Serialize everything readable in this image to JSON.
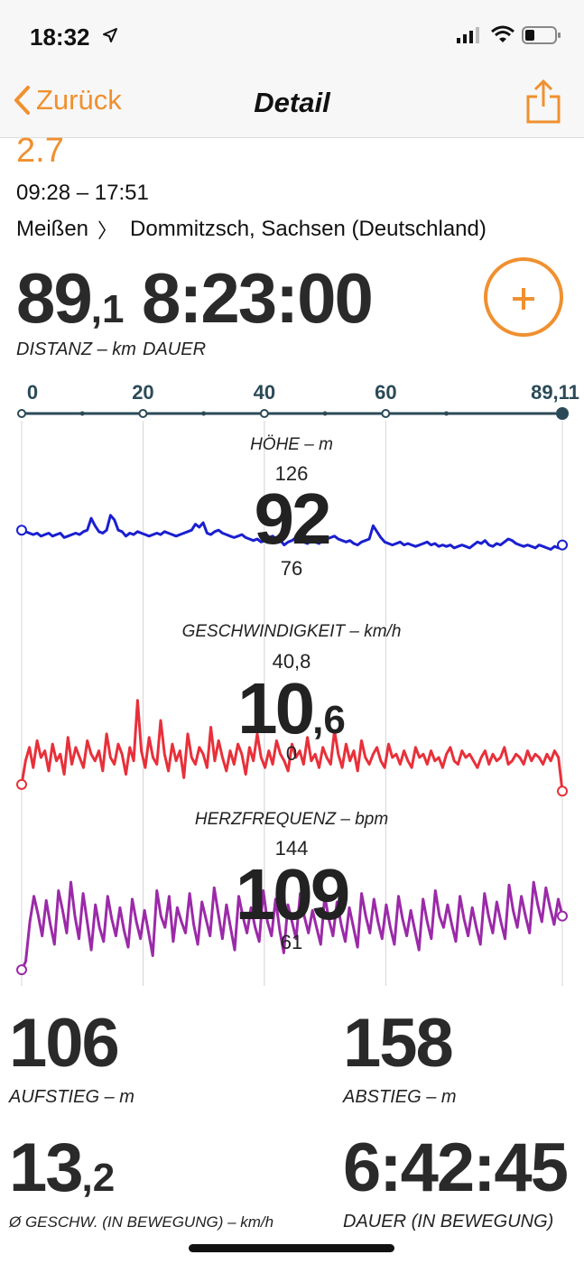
{
  "status": {
    "time": "18:32"
  },
  "nav": {
    "back_label": "Zurück",
    "title": "Detail"
  },
  "header": {
    "partial_text": "2.7",
    "time_range": "09:28 – 17:51",
    "route_from": "Meißen",
    "route_sep": "〉",
    "route_to": "Dommitzsch, Sachsen (Deutschland)"
  },
  "summary": {
    "distance_int": "89",
    "distance_dec": ",1",
    "distance_label": "DISTANZ – km",
    "duration": "8:23:00",
    "duration_label": "DAUER"
  },
  "colors": {
    "accent": "#f0902f",
    "axis": "#2b4a58",
    "elevation": "#1a1fd0",
    "speed": "#e8303a",
    "heartrate": "#9b2aa8"
  },
  "chart_data": [
    {
      "type": "line",
      "title": "HÖHE – m",
      "x_axis": {
        "ticks": [
          "0",
          "20",
          "40",
          "60",
          "89,11"
        ],
        "range": [
          0,
          89.11
        ]
      },
      "max_label": "126",
      "center_value": "92",
      "center_value_dec": "",
      "min_label": "76",
      "range": [
        76,
        126
      ],
      "series": [
        {
          "values": [
            96,
            95,
            94,
            93,
            94,
            92,
            93,
            94,
            92,
            93,
            94,
            91,
            92,
            93,
            94,
            93,
            95,
            96,
            104,
            99,
            95,
            94,
            96,
            106,
            103,
            96,
            95,
            92,
            94,
            93,
            95,
            94,
            93,
            92,
            93,
            94,
            93,
            95,
            94,
            93,
            92,
            93,
            94,
            95,
            96,
            100,
            98,
            101,
            94,
            93,
            95,
            96,
            94,
            93,
            92,
            91,
            92,
            93,
            91,
            90,
            89,
            90,
            88,
            89,
            91,
            92,
            90,
            89,
            86,
            88,
            89,
            91,
            90,
            88,
            87,
            89,
            88,
            87,
            89,
            90,
            91,
            92,
            90,
            89,
            88,
            89,
            87,
            86,
            88,
            89,
            90,
            99,
            95,
            91,
            88,
            87,
            86,
            87,
            88,
            86,
            87,
            86,
            85,
            86,
            87,
            88,
            86,
            87,
            85,
            86,
            85,
            86,
            84,
            85,
            86,
            85,
            84,
            86,
            88,
            87,
            89,
            86,
            85,
            87,
            86,
            88,
            90,
            89,
            87,
            86,
            85,
            86,
            85,
            84,
            86,
            85,
            84,
            83,
            85,
            84,
            86
          ]
        }
      ]
    },
    {
      "type": "line",
      "title": "GESCHWINDIGKEIT – km/h",
      "max_label": "40,8",
      "center_value": "10",
      "center_value_dec": ",6",
      "min_label": "0",
      "range": [
        0,
        40.8
      ],
      "series": [
        {
          "values": [
            3,
            10,
            14,
            8,
            16,
            11,
            13,
            7,
            15,
            10,
            12,
            6,
            17,
            9,
            14,
            11,
            8,
            16,
            12,
            10,
            13,
            7,
            18,
            11,
            9,
            15,
            12,
            6,
            14,
            10,
            28,
            13,
            8,
            17,
            11,
            9,
            22,
            12,
            7,
            15,
            10,
            13,
            5,
            18,
            11,
            9,
            14,
            12,
            8,
            20,
            10,
            16,
            11,
            7,
            13,
            9,
            15,
            12,
            6,
            14,
            10,
            18,
            11,
            8,
            13,
            9,
            16,
            12,
            10,
            7,
            15,
            11,
            13,
            9,
            17,
            10,
            12,
            8,
            14,
            11,
            9,
            19,
            12,
            8,
            15,
            10,
            13,
            7,
            16,
            11,
            9,
            12,
            14,
            10,
            8,
            15,
            11,
            12,
            9,
            13,
            10,
            8,
            14,
            11,
            12,
            9,
            13,
            10,
            11,
            8,
            12,
            14,
            10,
            9,
            13,
            11,
            12,
            10,
            8,
            11,
            13,
            9,
            12,
            10,
            11,
            14,
            9,
            10,
            12,
            11,
            9,
            13,
            10,
            12,
            11,
            9,
            12,
            10,
            13,
            11,
            1
          ]
        }
      ]
    },
    {
      "type": "line",
      "title": "HERZFREQUENZ – bpm",
      "max_label": "144",
      "center_value": "109",
      "center_value_dec": "",
      "min_label": "61",
      "range": [
        61,
        144
      ],
      "series": [
        {
          "values": [
            66,
            72,
            100,
            118,
            105,
            90,
            115,
            98,
            84,
            122,
            108,
            92,
            128,
            104,
            88,
            120,
            100,
            80,
            112,
            96,
            86,
            118,
            102,
            90,
            110,
            94,
            82,
            116,
            100,
            88,
            108,
            92,
            76,
            122,
            104,
            96,
            118,
            86,
            110,
            100,
            92,
            120,
            98,
            84,
            114,
            102,
            90,
            124,
            106,
            88,
            112,
            96,
            80,
            118,
            104,
            92,
            110,
            96,
            86,
            122,
            100,
            90,
            116,
            94,
            78,
            112,
            100,
            88,
            120,
            104,
            92,
            108,
            96,
            84,
            118,
            102,
            90,
            114,
            98,
            86,
            110,
            96,
            82,
            120,
            104,
            92,
            116,
            100,
            88,
            112,
            96,
            84,
            118,
            102,
            90,
            108,
            94,
            80,
            116,
            100,
            88,
            122,
            104,
            96,
            112,
            98,
            86,
            118,
            102,
            90,
            110,
            96,
            84,
            120,
            104,
            92,
            114,
            100,
            88,
            126,
            108,
            96,
            118,
            104,
            92,
            128,
            112,
            100,
            124,
            110,
            98,
            116,
            104
          ]
        }
      ]
    }
  ],
  "stats": {
    "ascent": "106",
    "ascent_label": "AUFSTIEG – m",
    "descent": "158",
    "descent_label": "ABSTIEG – m",
    "avg_speed_int": "13",
    "avg_speed_dec": ",2",
    "avg_speed_label": "Ø GESCHW. (IN BEWEGUNG) – km/h",
    "moving_duration": "6:42:45",
    "moving_duration_label": "DAUER (IN BEWEGUNG)"
  }
}
